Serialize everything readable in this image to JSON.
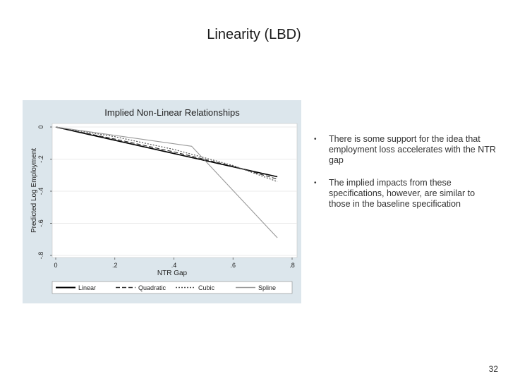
{
  "slide": {
    "title": "Linearity (LBD)",
    "page_number": "32"
  },
  "bullets": [
    "There is some support for the idea that employment loss accelerates with the NTR gap",
    "The implied impacts from these specifications, however, are similar to those in the baseline specification"
  ],
  "colors": {
    "chart_background": "#dce6ec",
    "plot_background": "#ffffff",
    "linear": "#000000",
    "quadratic": "#333333",
    "cubic": "#555555",
    "spline": "#999999"
  },
  "chart_data": {
    "type": "line",
    "title": "Implied Non-Linear Relationships",
    "xlabel": "NTR Gap",
    "ylabel": "Predicted Log Employment",
    "xlim": [
      0,
      0.8
    ],
    "ylim": [
      -0.8,
      0
    ],
    "xticks": [
      0,
      0.2,
      0.4,
      0.6,
      0.8
    ],
    "xtick_labels": [
      "0",
      ".2",
      ".4",
      ".6",
      ".8"
    ],
    "yticks": [
      0,
      -0.2,
      -0.4,
      -0.6,
      -0.8
    ],
    "ytick_labels": [
      "0",
      "-.2",
      "-.4",
      "-.6",
      "-.8"
    ],
    "grid": "horizontal",
    "legend_position": "bottom",
    "series": [
      {
        "name": "Linear",
        "style": "solid",
        "x": [
          0,
          0.75
        ],
        "y": [
          0,
          -0.31
        ]
      },
      {
        "name": "Quadratic",
        "style": "dashed",
        "x": [
          0,
          0.2,
          0.4,
          0.6,
          0.75
        ],
        "y": [
          0,
          -0.075,
          -0.155,
          -0.245,
          -0.325
        ]
      },
      {
        "name": "Cubic",
        "style": "dotted",
        "x": [
          0,
          0.2,
          0.4,
          0.6,
          0.75
        ],
        "y": [
          0,
          -0.06,
          -0.14,
          -0.24,
          -0.34
        ]
      },
      {
        "name": "Spline",
        "style": "solid",
        "x": [
          0,
          0.46,
          0.75
        ],
        "y": [
          0,
          -0.12,
          -0.69
        ]
      }
    ]
  }
}
